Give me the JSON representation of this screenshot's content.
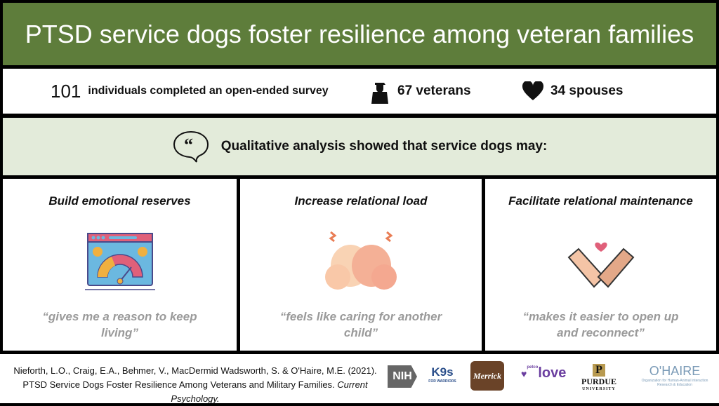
{
  "title": "PTSD service dogs foster resilience among veteran families",
  "stats": {
    "count": "101",
    "count_label": "individuals completed an open-ended survey",
    "veterans": "67 veterans",
    "spouses": "34 spouses"
  },
  "qualitative": "Qualitative analysis showed that service dogs may:",
  "cards": [
    {
      "title": "Build emotional reserves",
      "quote": "“gives me a reason to keep living”"
    },
    {
      "title": "Increase relational load",
      "quote": "“feels like caring for another child”"
    },
    {
      "title": "Facilitate relational maintenance",
      "quote": "“makes it easier to open up and reconnect”"
    }
  ],
  "citation": {
    "text": "Nieforth, L.O., Craig, E.A., Behmer, V., MacDermid Wadsworth, S. & O'Haire, M.E. (2021). PTSD Service Dogs Foster Resilience Among Veterans and Military Families.",
    "journal": "Current Psychology."
  },
  "logos": {
    "nih": "NIH",
    "k9": "K9s",
    "k9_sub": "FOR WARRIORS",
    "merrick": "Merrick",
    "petco": "petco",
    "love": "love",
    "purdue": "PURDUE",
    "purdue_sub": "UNIVERSITY",
    "ohaire": "O'HAIRE",
    "ohaire_sub": "Organization for Human-Animal Interaction Research & Education"
  },
  "colors": {
    "header": "#5e7d3b",
    "band": "#e3ebda",
    "quote": "#9a9a9a"
  }
}
